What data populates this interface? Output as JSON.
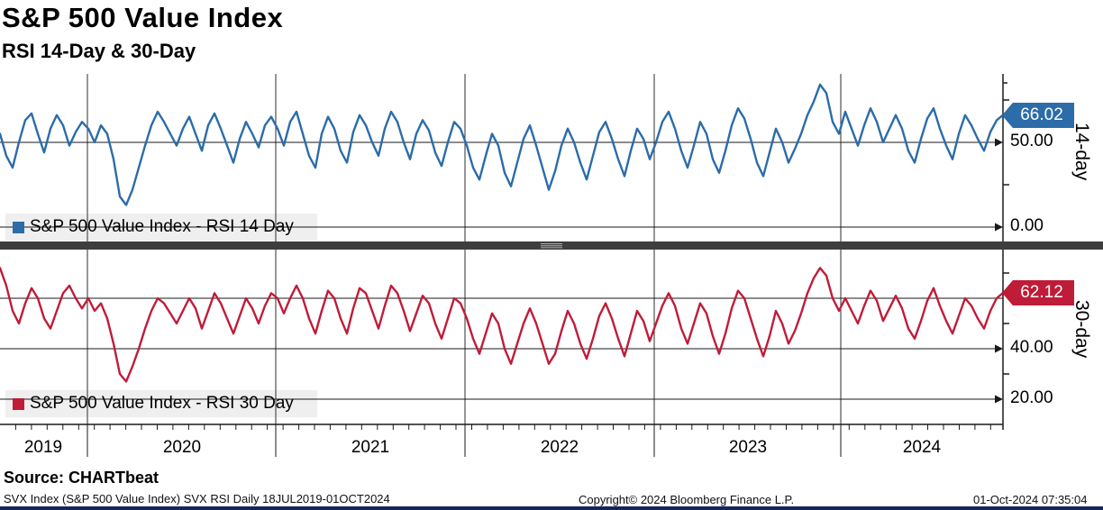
{
  "header": {
    "title": "S&P 500 Value Index",
    "subtitle": "RSI 14-Day & 30-Day"
  },
  "footer": {
    "source": "Source: CHARTbeat",
    "ticker_info": "SVX Index (S&P 500 Value Index) SVX RSI  Daily 18JUL2019-01OCT2024",
    "copyright": "Copyright© 2024 Bloomberg Finance L.P.",
    "timestamp": "01-Oct-2024 07:35:04"
  },
  "colors": {
    "rsi14_line": "#2b6ca9",
    "rsi14_tag_border": "#123a63",
    "rsi30_line": "#bf1c39",
    "rsi30_tag_border": "#6e0f24",
    "grid": "#2e2e2e",
    "legend_bg": "#efefef",
    "divider": "#3e3e3e",
    "bottom_bar": "#15255d"
  },
  "chart_data": {
    "type": "line",
    "title": "S&P 500 Value Index",
    "subtitle": "RSI 14-Day & 30-Day",
    "frequency": "Daily",
    "date_range": "18JUL2019-01OCT2024",
    "grid": true,
    "x_label_years": [
      "2019",
      "2020",
      "2021",
      "2022",
      "2023",
      "2024"
    ],
    "panels": [
      {
        "name": "RSI 14 Day",
        "legend": "S&P 500 Value Index - RSI 14 Day",
        "axis_label": "14-day",
        "last_value": 66.02,
        "last_value_label": "66.02",
        "y_tick_labels": [
          "50.00",
          "0.00"
        ],
        "y_ticks": [
          50,
          0
        ],
        "y_minor_ticks": [
          75,
          25
        ],
        "ylim": [
          -8.5,
          90.5
        ],
        "values": [
          55,
          42,
          35,
          50,
          63,
          67,
          55,
          44,
          58,
          66,
          60,
          48,
          56,
          62,
          58,
          50,
          60,
          55,
          40,
          18,
          13,
          22,
          35,
          48,
          60,
          68,
          62,
          55,
          48,
          58,
          65,
          55,
          45,
          60,
          67,
          58,
          48,
          38,
          52,
          62,
          55,
          47,
          60,
          65,
          58,
          48,
          62,
          68,
          55,
          42,
          35,
          55,
          65,
          58,
          45,
          38,
          56,
          66,
          60,
          50,
          42,
          58,
          68,
          62,
          50,
          40,
          55,
          63,
          57,
          44,
          36,
          50,
          62,
          58,
          48,
          35,
          28,
          42,
          55,
          48,
          32,
          24,
          38,
          52,
          60,
          48,
          35,
          22,
          33,
          48,
          58,
          50,
          38,
          28,
          42,
          56,
          62,
          52,
          40,
          30,
          45,
          58,
          52,
          40,
          50,
          62,
          68,
          58,
          45,
          35,
          48,
          62,
          55,
          40,
          32,
          45,
          60,
          70,
          64,
          52,
          38,
          30,
          44,
          58,
          50,
          38,
          46,
          55,
          66,
          74,
          84,
          79,
          62,
          55,
          68,
          58,
          48,
          60,
          70,
          62,
          50,
          58,
          66,
          58,
          45,
          38,
          52,
          64,
          70,
          58,
          48,
          40,
          55,
          66,
          60,
          52,
          45,
          56,
          63,
          66.02
        ]
      },
      {
        "name": "RSI 30 Day",
        "legend": "S&P 500 Value Index - RSI 30 Day",
        "axis_label": "30-day",
        "last_value": 62.12,
        "last_value_label": "62.12",
        "y_tick_labels": [
          "40.00",
          "20.00"
        ],
        "y_ticks": [
          40,
          20
        ],
        "y_minor_ticks": [
          70,
          50,
          30
        ],
        "gridline_values": [
          60,
          40,
          20
        ],
        "ylim": [
          10.7,
          79.3
        ],
        "values": [
          72,
          65,
          55,
          50,
          58,
          64,
          60,
          52,
          48,
          55,
          62,
          65,
          60,
          56,
          60,
          55,
          58,
          52,
          42,
          30,
          27,
          33,
          40,
          48,
          55,
          60,
          58,
          54,
          50,
          55,
          60,
          56,
          48,
          55,
          62,
          58,
          52,
          46,
          53,
          60,
          56,
          50,
          57,
          62,
          60,
          54,
          60,
          65,
          60,
          52,
          46,
          55,
          63,
          60,
          52,
          46,
          56,
          64,
          62,
          55,
          48,
          57,
          65,
          62,
          55,
          47,
          54,
          61,
          58,
          50,
          44,
          52,
          60,
          58,
          52,
          44,
          38,
          46,
          54,
          50,
          40,
          34,
          42,
          50,
          56,
          50,
          42,
          34,
          38,
          47,
          55,
          50,
          42,
          36,
          44,
          53,
          58,
          52,
          44,
          37,
          46,
          55,
          51,
          43,
          50,
          57,
          62,
          57,
          48,
          42,
          50,
          58,
          54,
          45,
          38,
          46,
          56,
          63,
          60,
          52,
          44,
          37,
          45,
          55,
          50,
          42,
          47,
          54,
          62,
          68,
          72,
          69,
          60,
          55,
          60,
          55,
          50,
          57,
          63,
          59,
          51,
          56,
          61,
          56,
          48,
          44,
          51,
          59,
          64,
          57,
          51,
          46,
          53,
          60,
          57,
          52,
          48,
          55,
          60,
          62.12
        ]
      }
    ]
  }
}
